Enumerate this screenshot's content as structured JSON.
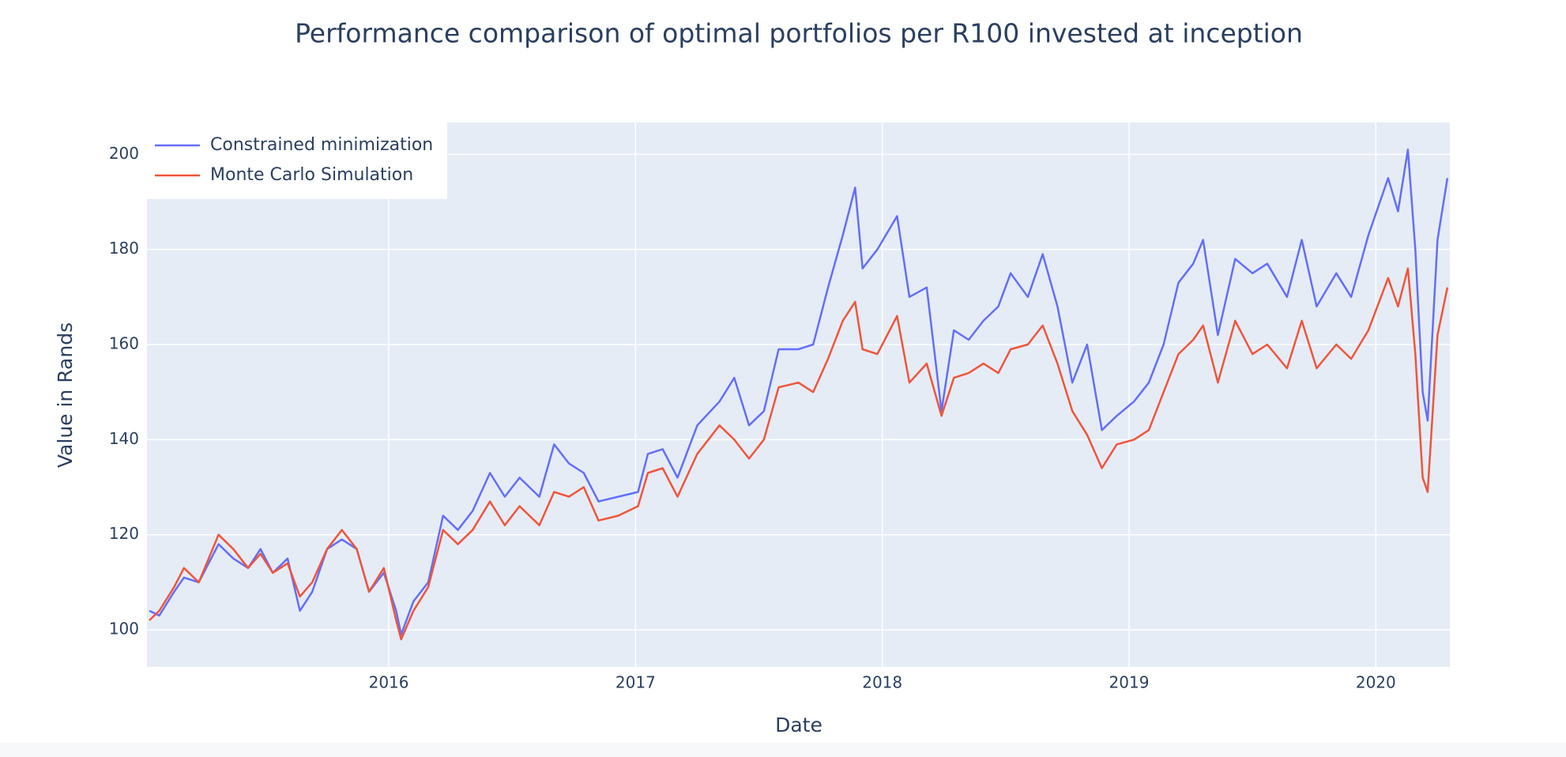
{
  "chart_data": {
    "type": "line",
    "title": "Performance comparison of optimal portfolios per R100 invested at inception",
    "x_label": "Date",
    "y_label": "Value in Rands",
    "x": [
      2015.03,
      2015.07,
      2015.13,
      2015.17,
      2015.23,
      2015.27,
      2015.31,
      2015.37,
      2015.43,
      2015.48,
      2015.53,
      2015.59,
      2015.64,
      2015.69,
      2015.75,
      2015.81,
      2015.87,
      2015.92,
      2015.98,
      2016.03,
      2016.05,
      2016.1,
      2016.16,
      2016.22,
      2016.28,
      2016.34,
      2016.41,
      2016.47,
      2016.53,
      2016.61,
      2016.67,
      2016.73,
      2016.79,
      2016.85,
      2016.93,
      2017.01,
      2017.05,
      2017.11,
      2017.17,
      2017.25,
      2017.34,
      2017.4,
      2017.46,
      2017.52,
      2017.58,
      2017.66,
      2017.72,
      2017.78,
      2017.84,
      2017.89,
      2017.92,
      2017.98,
      2018.06,
      2018.11,
      2018.18,
      2018.24,
      2018.29,
      2018.35,
      2018.41,
      2018.47,
      2018.52,
      2018.59,
      2018.65,
      2018.71,
      2018.77,
      2018.83,
      2018.89,
      2018.95,
      2019.02,
      2019.08,
      2019.14,
      2019.2,
      2019.26,
      2019.3,
      2019.36,
      2019.43,
      2019.5,
      2019.56,
      2019.64,
      2019.7,
      2019.76,
      2019.84,
      2019.9,
      2019.97,
      2020.05,
      2020.09,
      2020.13,
      2020.16,
      2020.19,
      2020.21,
      2020.25,
      2020.29
    ],
    "series": [
      {
        "name": "Constrained minimization",
        "color": "#636efa",
        "values": [
          104,
          103,
          108,
          111,
          110,
          114,
          118,
          115,
          113,
          117,
          112,
          115,
          104,
          108,
          117,
          119,
          117,
          108,
          112,
          104,
          99,
          106,
          110,
          124,
          121,
          125,
          133,
          128,
          132,
          128,
          139,
          135,
          133,
          127,
          128,
          129,
          137,
          138,
          132,
          143,
          148,
          153,
          143,
          146,
          159,
          159,
          160,
          172,
          183,
          193,
          176,
          180,
          187,
          170,
          172,
          146,
          163,
          161,
          165,
          168,
          175,
          170,
          179,
          168,
          152,
          160,
          142,
          145,
          148,
          152,
          160,
          173,
          177,
          182,
          162,
          178,
          175,
          177,
          170,
          182,
          168,
          175,
          170,
          183,
          195,
          188,
          201,
          180,
          150,
          144,
          182,
          195
        ]
      },
      {
        "name": "Monte Carlo Simulation",
        "color": "#ef553b",
        "values": [
          102,
          104,
          109,
          113,
          110,
          115,
          120,
          117,
          113,
          116,
          112,
          114,
          107,
          110,
          117,
          121,
          117,
          108,
          113,
          102,
          98,
          104,
          109,
          121,
          118,
          121,
          127,
          122,
          126,
          122,
          129,
          128,
          130,
          123,
          124,
          126,
          133,
          134,
          128,
          137,
          143,
          140,
          136,
          140,
          151,
          152,
          150,
          157,
          165,
          169,
          159,
          158,
          166,
          152,
          156,
          145,
          153,
          154,
          156,
          154,
          159,
          160,
          164,
          156,
          146,
          141,
          134,
          139,
          140,
          142,
          150,
          158,
          161,
          164,
          152,
          165,
          158,
          160,
          155,
          165,
          155,
          160,
          157,
          163,
          174,
          168,
          176,
          158,
          132,
          129,
          162,
          172
        ]
      }
    ],
    "xlim": [
      2015.02,
      2020.3
    ],
    "xticks": [
      2016,
      2017,
      2018,
      2019,
      2020
    ],
    "ylim": [
      92.2,
      206.7
    ],
    "yticks": [
      100,
      120,
      140,
      160,
      180,
      200
    ],
    "grid": true,
    "legend": "top-left"
  }
}
